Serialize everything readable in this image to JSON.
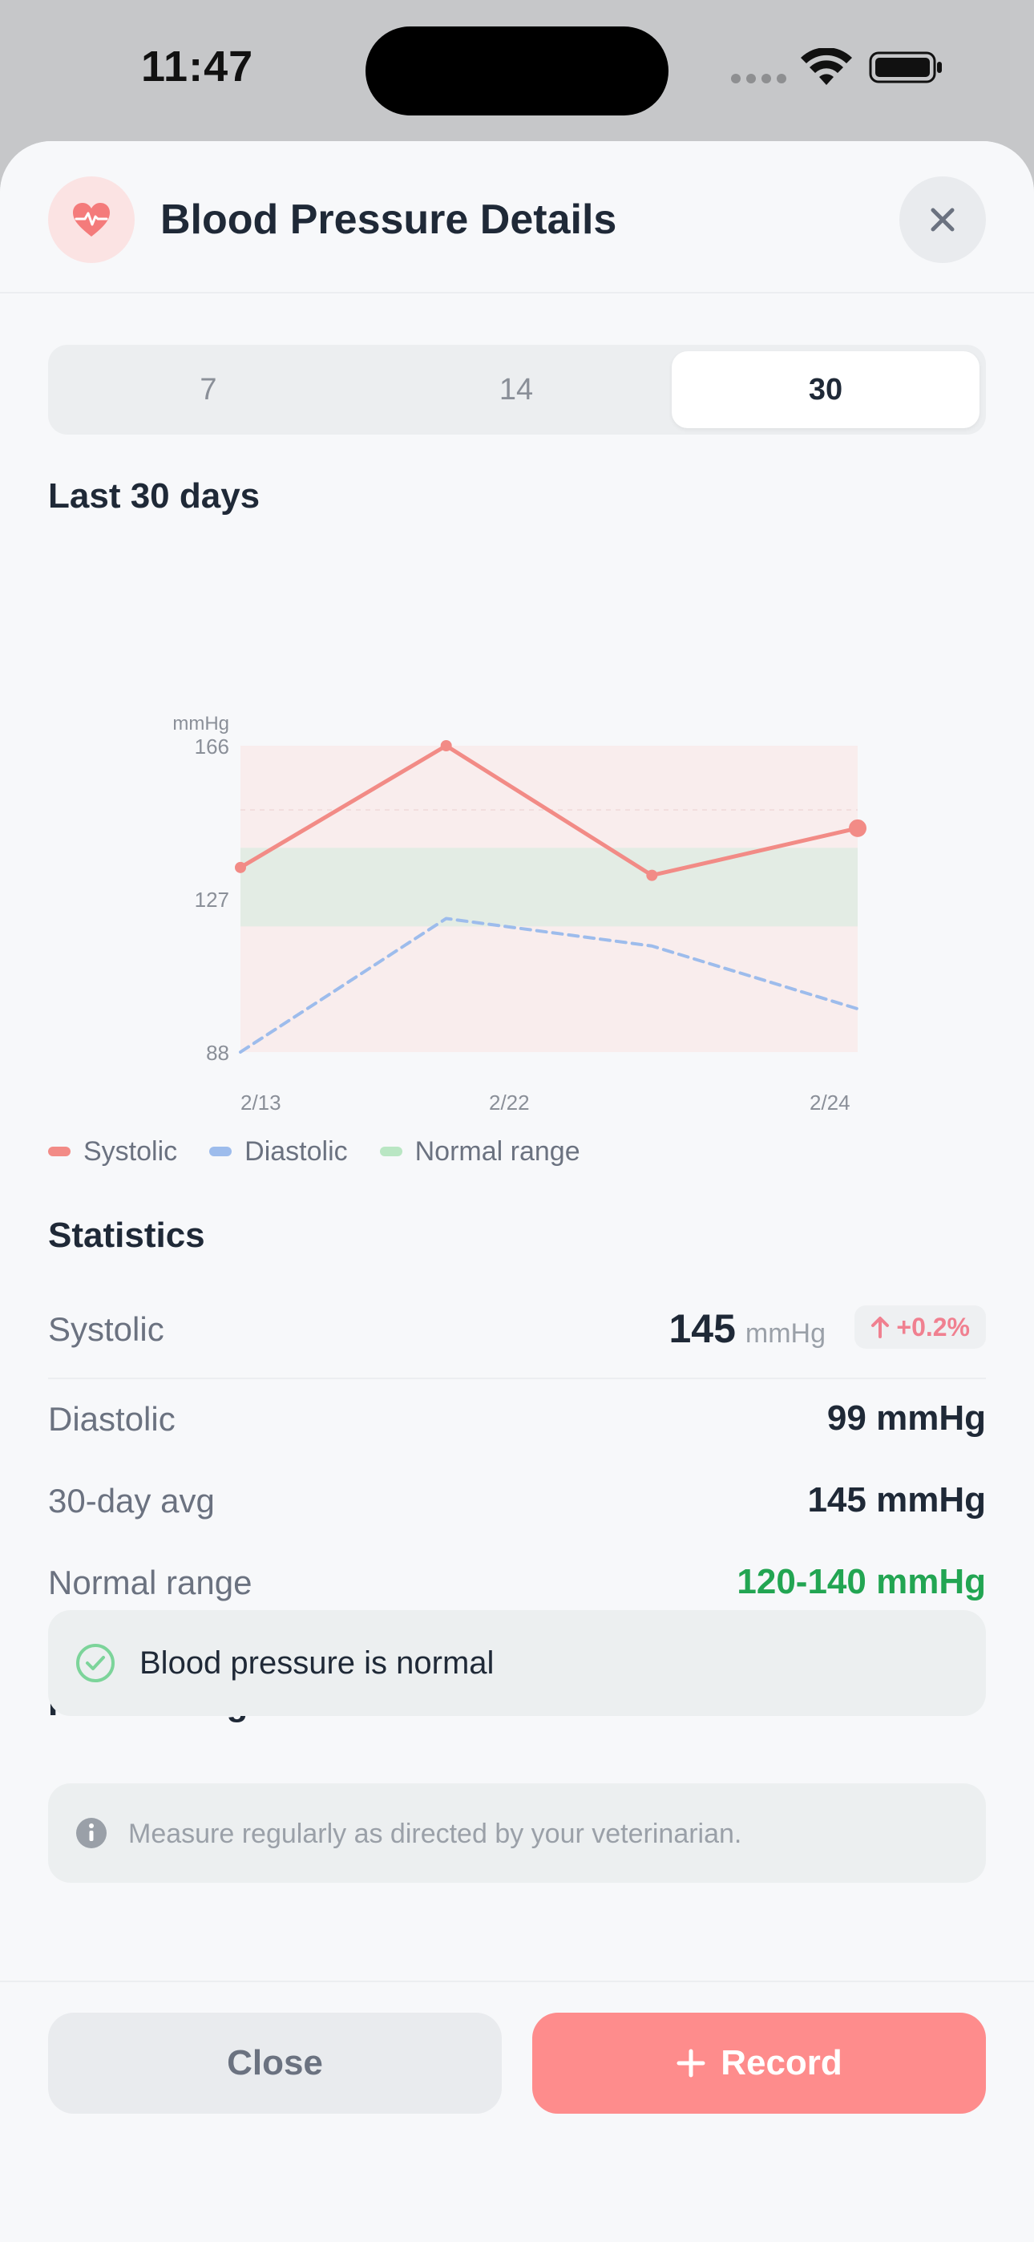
{
  "status_bar": {
    "time": "11:47"
  },
  "header": {
    "title": "Blood Pressure Details",
    "icon": "heart-pulse-icon"
  },
  "segments": [
    {
      "label": "7",
      "active": false
    },
    {
      "label": "14",
      "active": false
    },
    {
      "label": "30",
      "active": true
    }
  ],
  "chart_section_title": "Last 30 days",
  "chart_data": {
    "type": "line",
    "unit_label": "mmHg",
    "x_tick_labels": [
      "2/13",
      "2/22",
      "2/24"
    ],
    "y_ticks": [
      88,
      127,
      166
    ],
    "ylim": [
      88,
      166
    ],
    "normal_range": [
      120,
      140
    ],
    "series": [
      {
        "name": "Systolic",
        "color": "#f28b86",
        "style": "solid",
        "values": [
          135,
          166,
          133,
          145
        ]
      },
      {
        "name": "Diastolic",
        "color": "#9dbcec",
        "style": "dashed",
        "values": [
          88,
          122,
          115,
          99
        ]
      }
    ],
    "legend": [
      {
        "label": "Systolic",
        "color": "#f28b86"
      },
      {
        "label": "Diastolic",
        "color": "#9dbcec"
      },
      {
        "label": "Normal range",
        "color": "#b9e6c3"
      }
    ],
    "legend_position": "bottom-left"
  },
  "statistics": {
    "title": "Statistics",
    "systolic": {
      "label": "Systolic",
      "value": "145",
      "unit": "mmHg",
      "trend": "+0.2%"
    },
    "diastolic": {
      "label": "Diastolic",
      "value": "99 mmHg"
    },
    "avg": {
      "label": "30-day avg",
      "value": "145 mmHg"
    },
    "normal": {
      "label": "Normal range",
      "value": "120-140 mmHg",
      "color": "#22a552"
    }
  },
  "insights": {
    "title": "Health Insights",
    "message": "Blood pressure is normal"
  },
  "note": "Measure regularly as directed by your veterinarian.",
  "buttons": {
    "close": "Close",
    "record": "Record"
  },
  "colors": {
    "accent": "#fe8c8c",
    "success": "#22a552"
  }
}
